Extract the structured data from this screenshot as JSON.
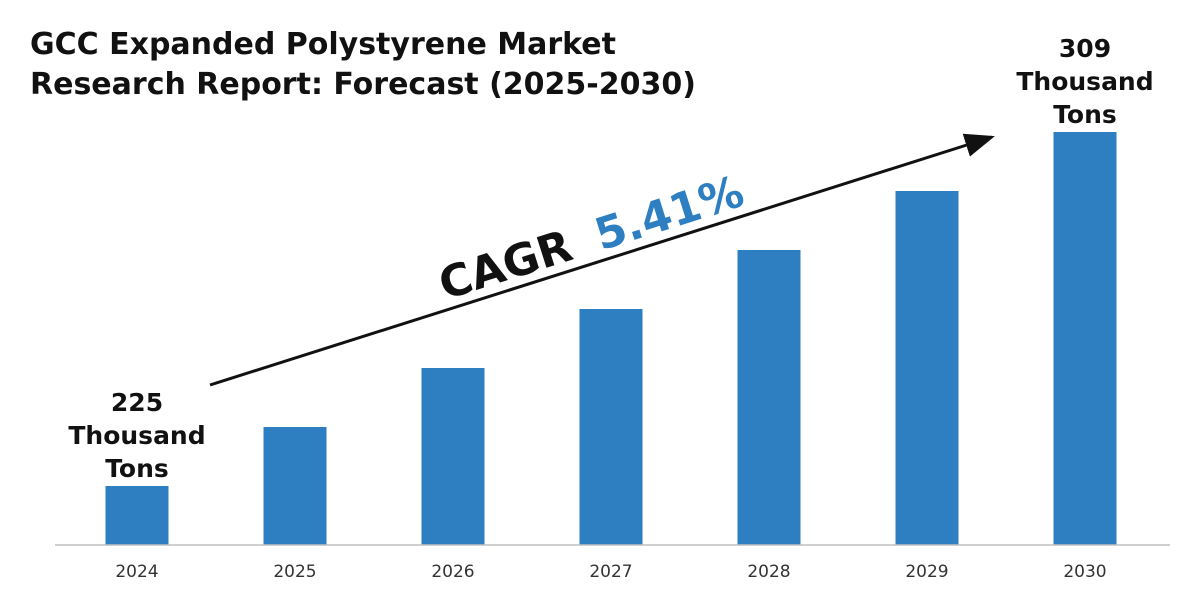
{
  "chart_data": {
    "type": "bar",
    "title_lines": [
      "GCC Expanded Polystyrene Market",
      "Research Report: Forecast (2025-2030)"
    ],
    "categories": [
      "2024",
      "2025",
      "2026",
      "2027",
      "2028",
      "2029",
      "2030"
    ],
    "values": [
      225,
      239,
      253,
      267,
      281,
      295,
      309
    ],
    "value_unit_label": "Thousand Tons",
    "ylim": [
      200,
      315
    ],
    "grid": false,
    "start_label": [
      "225",
      "Thousand",
      "Tons"
    ],
    "end_label": [
      "309",
      "Thousand",
      "Tons"
    ],
    "cagr": {
      "prefix": "CAGR",
      "value": "5.41%"
    },
    "colors": {
      "bar": "#2e7fc2",
      "cagr_value": "#2e7fc2",
      "text": "#111111",
      "axis": "#bfbfbf"
    }
  }
}
